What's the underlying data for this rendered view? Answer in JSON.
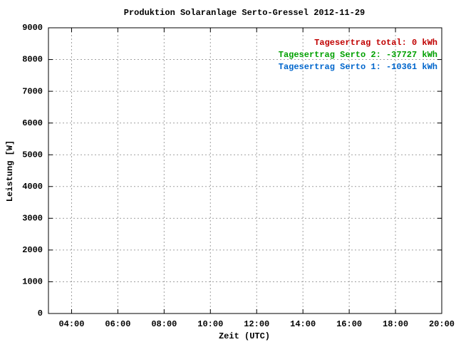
{
  "chart_data": {
    "type": "line",
    "title": "Produktion Solaranlage Serto-Gressel 2012-11-29",
    "x_label": "Zeit (UTC)",
    "y_label": "Leistung [W]",
    "xlim": [
      3,
      20
    ],
    "xticks": [
      {
        "value": 4,
        "label": "04:00"
      },
      {
        "value": 6,
        "label": "06:00"
      },
      {
        "value": 8,
        "label": "08:00"
      },
      {
        "value": 10,
        "label": "10:00"
      },
      {
        "value": 12,
        "label": "12:00"
      },
      {
        "value": 14,
        "label": "14:00"
      },
      {
        "value": 16,
        "label": "16:00"
      },
      {
        "value": 18,
        "label": "18:00"
      },
      {
        "value": 20,
        "label": "20:00"
      }
    ],
    "ylim": [
      0,
      9000
    ],
    "yticks": [
      0,
      1000,
      2000,
      3000,
      4000,
      5000,
      6000,
      7000,
      8000,
      9000
    ],
    "grid": true,
    "legend_position": "top-right",
    "series": [
      {
        "name": "Tagesertrag total: 0 kWh",
        "color": "#c00000",
        "x": [],
        "values": []
      },
      {
        "name": "Tagesertrag Serto 2: -37727 kWh",
        "color": "#00a000",
        "x": [],
        "values": []
      },
      {
        "name": "Tagesertrag Serto 1: -10361 kWh",
        "color": "#0066cc",
        "x": [],
        "values": []
      }
    ]
  }
}
